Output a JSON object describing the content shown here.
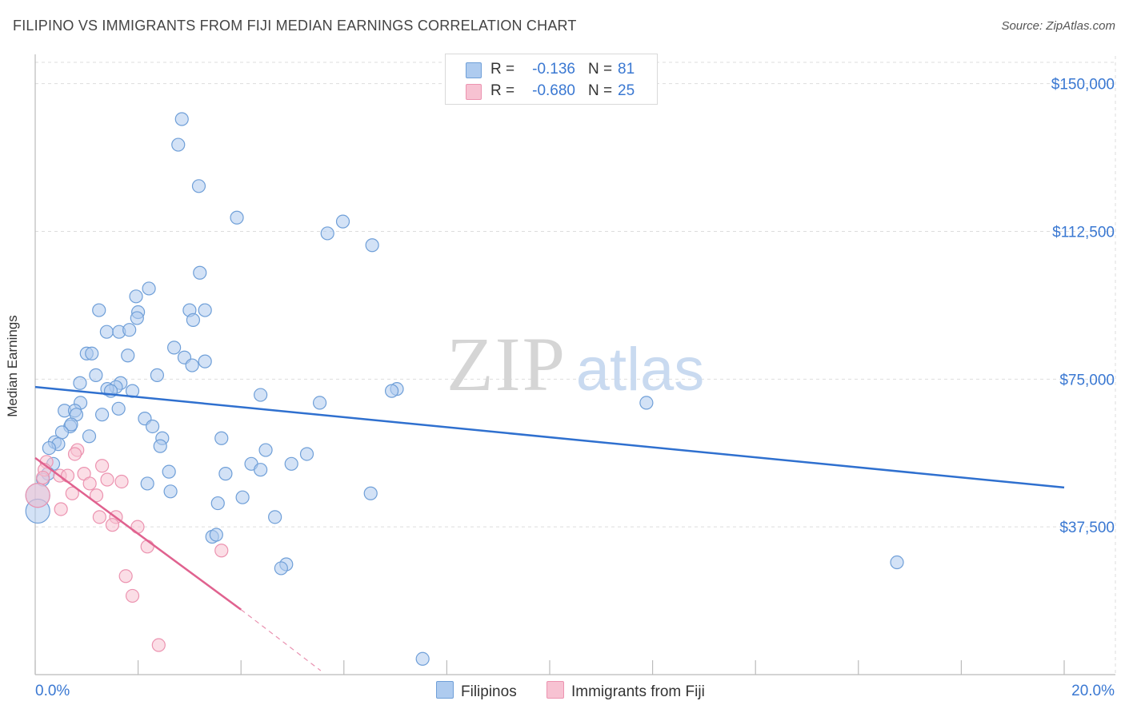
{
  "title": "FILIPINO VS IMMIGRANTS FROM FIJI MEDIAN EARNINGS CORRELATION CHART",
  "source": "Source: ZipAtlas.com",
  "watermark": {
    "zip": "ZIP",
    "atlas": "atlas"
  },
  "colors": {
    "blue_fill": "#aecbef",
    "blue_stroke": "#6f9fd8",
    "blue_line": "#2f70cf",
    "pink_fill": "#f7c2d2",
    "pink_stroke": "#ec93b0",
    "pink_line": "#e0628f",
    "axis_text": "#3a78d2",
    "grid": "#dddddd"
  },
  "legend_top": [
    {
      "r_label": "R =",
      "r_value": "-0.136",
      "n_label": "N =",
      "n_value": "81"
    },
    {
      "r_label": "R =",
      "r_value": "-0.680",
      "n_label": "N =",
      "n_value": "25"
    }
  ],
  "legend_bottom": [
    "Filipinos",
    "Immigrants from Fiji"
  ],
  "chart_data": {
    "type": "scatter",
    "title": "FILIPINO VS IMMIGRANTS FROM FIJI MEDIAN EARNINGS CORRELATION CHART",
    "xlabel": "",
    "ylabel": "Median Earnings",
    "xlim": [
      0,
      20
    ],
    "ylim": [
      0,
      155000
    ],
    "x_tick_labels": [
      "0.0%",
      "20.0%"
    ],
    "y_ticks": [
      37500,
      75000,
      112500,
      150000
    ],
    "y_tick_labels": [
      "$37,500",
      "$75,000",
      "$112,500",
      "$150,000"
    ],
    "grid": true,
    "legend_position": "top-center",
    "series": [
      {
        "name": "Filipinos",
        "color": "#aecbef",
        "points": [
          {
            "x": 2.85,
            "y": 141000
          },
          {
            "x": 2.78,
            "y": 134500
          },
          {
            "x": 3.18,
            "y": 124000
          },
          {
            "x": 3.92,
            "y": 116000
          },
          {
            "x": 5.98,
            "y": 115000
          },
          {
            "x": 5.68,
            "y": 112000
          },
          {
            "x": 6.55,
            "y": 109000
          },
          {
            "x": 3.2,
            "y": 102000
          },
          {
            "x": 2.21,
            "y": 98000
          },
          {
            "x": 1.96,
            "y": 96000
          },
          {
            "x": 1.24,
            "y": 92500
          },
          {
            "x": 2.0,
            "y": 92000
          },
          {
            "x": 3.0,
            "y": 92500
          },
          {
            "x": 3.3,
            "y": 92500
          },
          {
            "x": 1.98,
            "y": 90500
          },
          {
            "x": 3.07,
            "y": 90000
          },
          {
            "x": 1.39,
            "y": 87000
          },
          {
            "x": 1.63,
            "y": 87000
          },
          {
            "x": 1.83,
            "y": 87500
          },
          {
            "x": 2.7,
            "y": 83000
          },
          {
            "x": 1.0,
            "y": 81500
          },
          {
            "x": 1.1,
            "y": 81500
          },
          {
            "x": 1.8,
            "y": 81000
          },
          {
            "x": 2.9,
            "y": 80500
          },
          {
            "x": 3.3,
            "y": 79500
          },
          {
            "x": 3.05,
            "y": 78500
          },
          {
            "x": 1.18,
            "y": 76000
          },
          {
            "x": 2.37,
            "y": 76000
          },
          {
            "x": 0.87,
            "y": 74000
          },
          {
            "x": 1.66,
            "y": 74000
          },
          {
            "x": 1.57,
            "y": 73000
          },
          {
            "x": 1.4,
            "y": 72500
          },
          {
            "x": 1.47,
            "y": 72000
          },
          {
            "x": 1.89,
            "y": 72000
          },
          {
            "x": 7.03,
            "y": 72500
          },
          {
            "x": 6.93,
            "y": 72000
          },
          {
            "x": 4.38,
            "y": 71000
          },
          {
            "x": 0.88,
            "y": 69000
          },
          {
            "x": 5.53,
            "y": 69000
          },
          {
            "x": 11.88,
            "y": 69000
          },
          {
            "x": 1.62,
            "y": 67500
          },
          {
            "x": 0.57,
            "y": 67000
          },
          {
            "x": 0.77,
            "y": 67000
          },
          {
            "x": 0.8,
            "y": 66000
          },
          {
            "x": 1.3,
            "y": 66000
          },
          {
            "x": 2.13,
            "y": 65000
          },
          {
            "x": 0.68,
            "y": 63000
          },
          {
            "x": 0.7,
            "y": 63500
          },
          {
            "x": 2.28,
            "y": 63000
          },
          {
            "x": 0.52,
            "y": 61500
          },
          {
            "x": 1.05,
            "y": 60500
          },
          {
            "x": 2.47,
            "y": 60000
          },
          {
            "x": 3.62,
            "y": 60000
          },
          {
            "x": 0.38,
            "y": 59000
          },
          {
            "x": 0.45,
            "y": 58500
          },
          {
            "x": 2.43,
            "y": 58000
          },
          {
            "x": 0.27,
            "y": 57500
          },
          {
            "x": 4.48,
            "y": 57000
          },
          {
            "x": 5.28,
            "y": 56000
          },
          {
            "x": 0.35,
            "y": 53500
          },
          {
            "x": 4.2,
            "y": 53500
          },
          {
            "x": 4.98,
            "y": 53500
          },
          {
            "x": 4.38,
            "y": 52000
          },
          {
            "x": 2.6,
            "y": 51500
          },
          {
            "x": 3.7,
            "y": 51000
          },
          {
            "x": 0.25,
            "y": 51000
          },
          {
            "x": 0.15,
            "y": 49500
          },
          {
            "x": 2.18,
            "y": 48500
          },
          {
            "x": 2.63,
            "y": 46500
          },
          {
            "x": 6.52,
            "y": 46000
          },
          {
            "x": 4.03,
            "y": 45000
          },
          {
            "x": 0.05,
            "y": 45500
          },
          {
            "x": 3.55,
            "y": 43500
          },
          {
            "x": 0.05,
            "y": 41500
          },
          {
            "x": 4.66,
            "y": 40000
          },
          {
            "x": 3.44,
            "y": 35000
          },
          {
            "x": 3.52,
            "y": 35500
          },
          {
            "x": 4.88,
            "y": 28000
          },
          {
            "x": 4.78,
            "y": 27000
          },
          {
            "x": 16.75,
            "y": 28500
          },
          {
            "x": 7.53,
            "y": 4000
          }
        ]
      },
      {
        "name": "Immigrants from Fiji",
        "color": "#f7c2d2",
        "points": [
          {
            "x": 0.82,
            "y": 57000
          },
          {
            "x": 0.77,
            "y": 56000
          },
          {
            "x": 0.22,
            "y": 54000
          },
          {
            "x": 1.3,
            "y": 53000
          },
          {
            "x": 0.18,
            "y": 52000
          },
          {
            "x": 0.48,
            "y": 50500
          },
          {
            "x": 0.63,
            "y": 50500
          },
          {
            "x": 0.95,
            "y": 51000
          },
          {
            "x": 0.15,
            "y": 50000
          },
          {
            "x": 1.4,
            "y": 49500
          },
          {
            "x": 1.68,
            "y": 49000
          },
          {
            "x": 1.06,
            "y": 48500
          },
          {
            "x": 0.72,
            "y": 46000
          },
          {
            "x": 0.05,
            "y": 45500
          },
          {
            "x": 1.19,
            "y": 45500
          },
          {
            "x": 0.5,
            "y": 42000
          },
          {
            "x": 1.25,
            "y": 40000
          },
          {
            "x": 1.57,
            "y": 40000
          },
          {
            "x": 1.5,
            "y": 38000
          },
          {
            "x": 1.99,
            "y": 37500
          },
          {
            "x": 2.18,
            "y": 32500
          },
          {
            "x": 3.62,
            "y": 31500
          },
          {
            "x": 1.76,
            "y": 25000
          },
          {
            "x": 1.89,
            "y": 20000
          },
          {
            "x": 2.4,
            "y": 7500
          }
        ]
      }
    ],
    "trend_lines": [
      {
        "series": "Filipinos",
        "from": {
          "x": 0,
          "y": 73000
        },
        "to": {
          "x": 20,
          "y": 47500
        }
      },
      {
        "series": "Immigrants from Fiji",
        "from": {
          "x": 0,
          "y": 55000
        },
        "to": {
          "x": 4.0,
          "y": 16500
        },
        "dashed_to": {
          "x": 5.55,
          "y": 1000
        }
      }
    ]
  }
}
